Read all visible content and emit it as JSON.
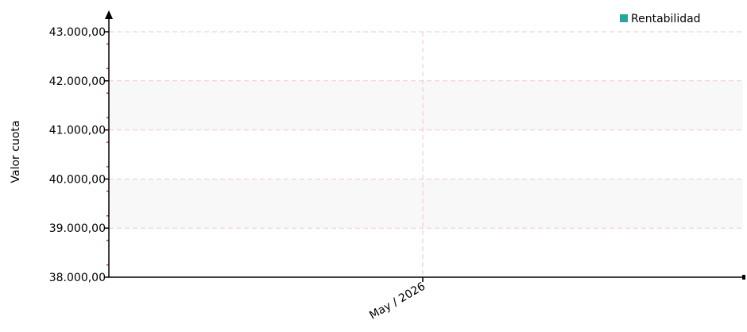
{
  "chart_data": {
    "type": "line",
    "title": "",
    "xlabel": "",
    "ylabel": "Valor cuota",
    "ylim": [
      38000,
      43000
    ],
    "y_ticks": [
      "38.000,00",
      "39.000,00",
      "40.000,00",
      "41.000,00",
      "42.000,00",
      "43.000,00"
    ],
    "x_ticks": [
      "May / 2026"
    ],
    "legend_position": "top-right",
    "grid": true,
    "series": [
      {
        "name": "Rentabilidad",
        "color": "#26a69a",
        "x": [],
        "values": []
      }
    ]
  }
}
